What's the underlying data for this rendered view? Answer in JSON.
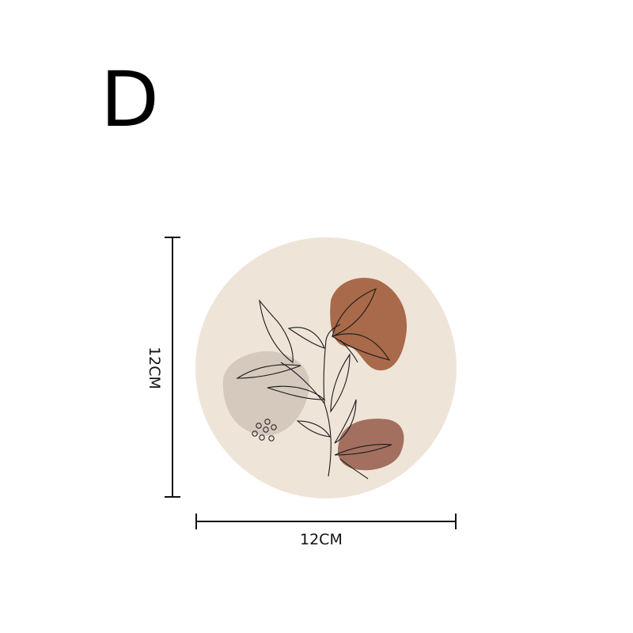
{
  "variant_letter": "D",
  "dimensions": {
    "width_label": "12CM",
    "height_label": "12CM"
  },
  "colors": {
    "coaster_background": "#efe4d8",
    "blob_top": "#a86a4a",
    "blob_bottom": "#a3705f",
    "blob_left": "#d5c8bd",
    "line_art": "#1a1a1a"
  },
  "illustration": "line-art-leaf-branch"
}
